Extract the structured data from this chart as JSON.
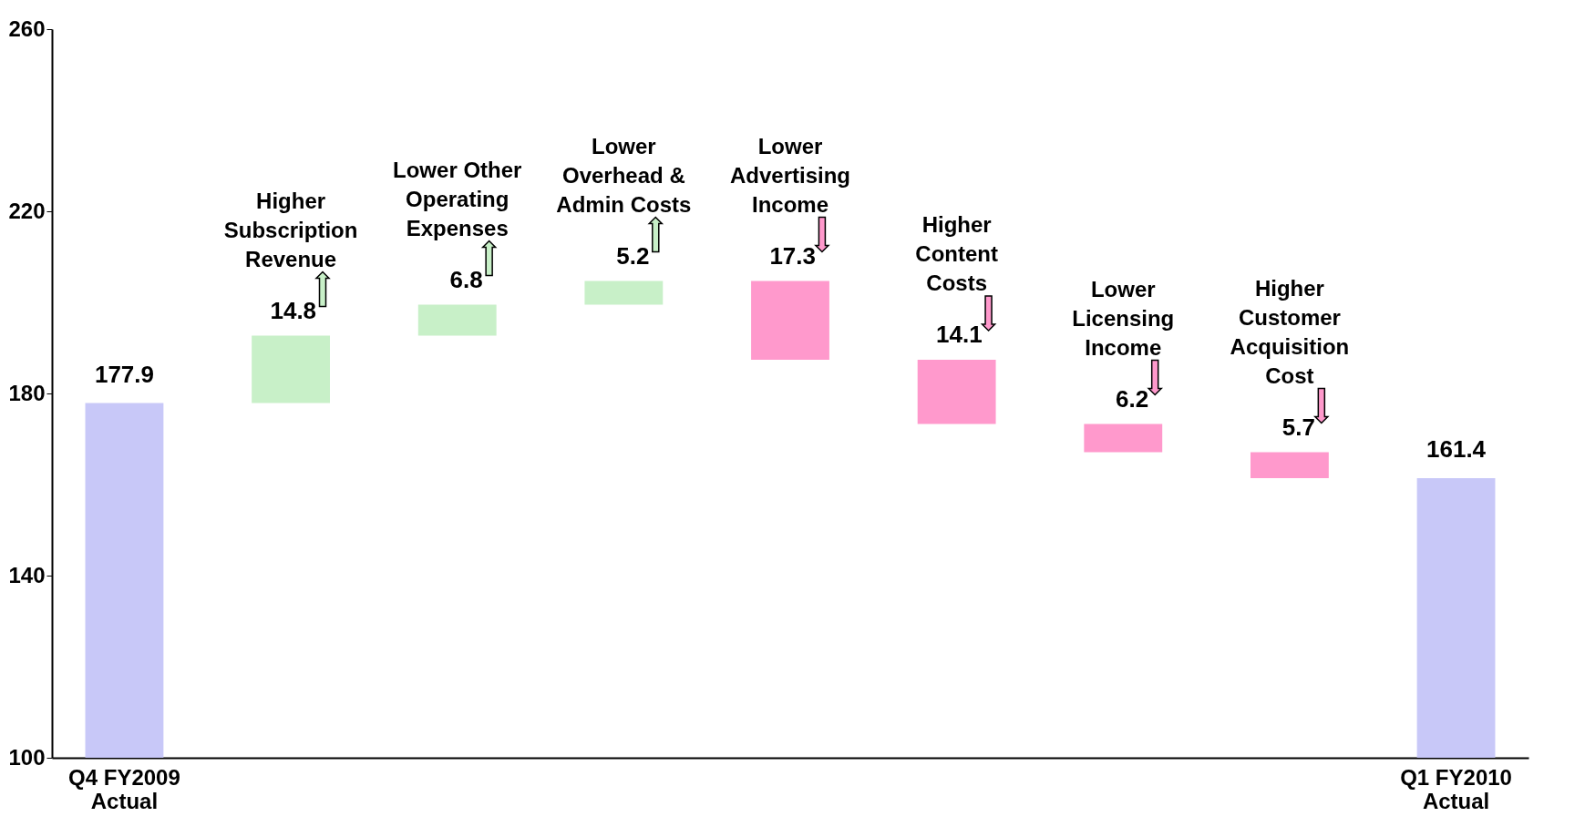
{
  "chart_data": {
    "type": "bar",
    "categories": [
      "Q4 FY2009\nActual",
      "Higher\nSubscription\nRevenue",
      "Lower Other\nOperating\nExpenses",
      "Lower\nOverhead &\nAdmin Costs",
      "Lower\nAdvertising\nIncome",
      "Higher\nContent\nCosts",
      "Lower\nLicensing\nIncome",
      "Higher\nCustomer\nAcquisition\nCost",
      "Q1 FY2010\nActual"
    ],
    "values": [
      177.9,
      14.8,
      6.8,
      5.2,
      -17.3,
      -14.1,
      -6.2,
      -5.7,
      161.4
    ],
    "base": [
      null,
      177.9,
      192.7,
      199.5,
      204.7,
      187.4,
      173.3,
      167.1,
      null
    ],
    "colors": [
      "#c8c8f8",
      "#c8f0c8",
      "#c8f0c8",
      "#c8f0c8",
      "#ff99cc",
      "#ff99cc",
      "#ff99cc",
      "#ff99cc",
      "#c8c8f8"
    ],
    "value_labels": [
      "177.9",
      "14.8",
      "6.8",
      "5.2",
      "17.3",
      "14.1",
      "6.2",
      "5.7",
      "161.4"
    ],
    "ylim": [
      100,
      260
    ],
    "yticks": [
      100,
      140,
      180,
      220,
      260
    ],
    "grid": false
  }
}
